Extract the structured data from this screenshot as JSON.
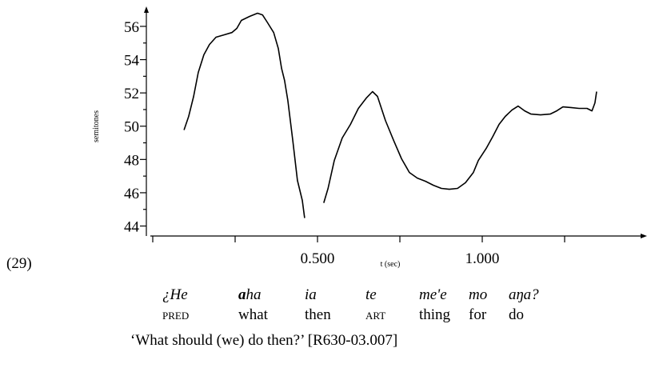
{
  "chart_data": {
    "type": "line",
    "example_number": "(29)",
    "ylabel": "semitones",
    "xlabel": "t (sec)",
    "xlim": [
      0,
      1.5
    ],
    "ylim": [
      43.4,
      57.2
    ],
    "xticks": [
      {
        "value": 0.5,
        "label": "0.500"
      },
      {
        "value": 1,
        "label": "1.000"
      }
    ],
    "xticks_minor": [
      0,
      0.25,
      0.75,
      1.25
    ],
    "yticks": [
      44,
      46,
      48,
      50,
      52,
      54,
      56
    ],
    "yticks_minor": [
      45,
      47,
      49,
      51,
      53,
      55
    ],
    "color": "#000000",
    "x": [
      0.095,
      0.109,
      0.124,
      0.138,
      0.155,
      0.172,
      0.192,
      0.216,
      0.24,
      0.255,
      0.269,
      0.294,
      0.318,
      0.333,
      0.347,
      0.367,
      0.381,
      0.391,
      0.4,
      0.41,
      0.425,
      0.439,
      0.454,
      0.461,
      null,
      0.519,
      0.532,
      0.551,
      0.575,
      0.6,
      0.624,
      0.648,
      0.667,
      0.682,
      0.706,
      0.731,
      0.755,
      0.779,
      0.803,
      0.828,
      0.852,
      0.876,
      0.9,
      0.925,
      0.949,
      0.973,
      0.988,
      1.012,
      1.032,
      1.051,
      1.07,
      1.09,
      1.109,
      1.129,
      1.148,
      1.177,
      1.206,
      1.226,
      1.245,
      1.269,
      1.294,
      1.318,
      1.333,
      1.342,
      1.347
    ],
    "values": [
      49.77,
      50.59,
      51.79,
      53.23,
      54.29,
      54.91,
      55.35,
      55.49,
      55.63,
      55.88,
      56.36,
      56.6,
      56.79,
      56.69,
      56.26,
      55.63,
      54.67,
      53.47,
      52.75,
      51.55,
      49.14,
      46.74,
      45.54,
      44.48,
      null,
      45.39,
      46.26,
      47.94,
      49.29,
      50.11,
      51.07,
      51.69,
      52.08,
      51.79,
      50.35,
      49.14,
      48.04,
      47.22,
      46.88,
      46.69,
      46.45,
      46.26,
      46.21,
      46.26,
      46.6,
      47.22,
      47.94,
      48.66,
      49.38,
      50.11,
      50.59,
      50.97,
      51.21,
      50.92,
      50.73,
      50.68,
      50.73,
      50.92,
      51.16,
      51.12,
      51.07,
      51.07,
      50.92,
      51.4,
      52.08
    ]
  },
  "gloss": {
    "words": [
      {
        "text": "¿He"
      },
      {
        "text": "aha",
        "bold": "a"
      },
      {
        "text": "ia"
      },
      {
        "text": "te"
      },
      {
        "text": "me'e"
      },
      {
        "text": "mo"
      },
      {
        "text": "aŋa?"
      }
    ],
    "glosses": [
      {
        "text": "pred",
        "smallcaps": true
      },
      {
        "text": "what"
      },
      {
        "text": "then"
      },
      {
        "text": "art",
        "smallcaps": true
      },
      {
        "text": "thing"
      },
      {
        "text": "for"
      },
      {
        "text": "do"
      }
    ],
    "translation": "‘What should (we) do then?’ [R630-03.007]"
  }
}
